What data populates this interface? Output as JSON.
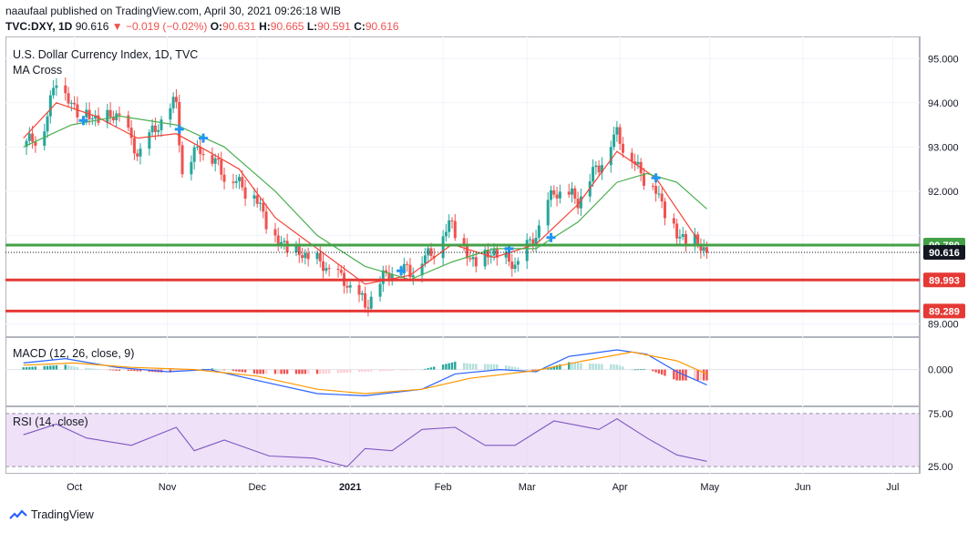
{
  "header": {
    "publisher": "naaufaal published on TradingView.com, April 30, 2021 09:26:18 WIB",
    "symbol": "TVC:DXY, 1D",
    "last": "90.616",
    "change": "−0.019 (−0.02%)",
    "open_label": "O:",
    "open": "90.631",
    "high_label": "H:",
    "high": "90.665",
    "low_label": "L:",
    "low": "90.591",
    "close_label": "C:",
    "close": "90.616"
  },
  "chart_title": "U.S. Dollar Currency Index, 1D, TVC",
  "indicator_ma": "MA Cross",
  "indicator_macd": "MACD (12, 26, close, 9)",
  "indicator_rsi": "RSI (14, close)",
  "footer_brand": "TradingView",
  "colors": {
    "up": "#26a69a",
    "down": "#ef5350",
    "ma_fast": "#f44336",
    "ma_slow": "#4caf50",
    "macd": "#2962ff",
    "signal": "#ff9800",
    "rsi": "#7e57c2",
    "rsi_band": "#e1c8f0",
    "level_red": "#e53935",
    "level_green": "#43a047",
    "cross_marker": "#2196f3"
  },
  "chart_data": [
    {
      "type": "candlestick",
      "title": "U.S. Dollar Currency Index, 1D, TVC",
      "ylim": [
        88.7,
        95.5
      ],
      "yticks": [
        "95.000",
        "94.000",
        "93.000",
        "92.000",
        "89.000"
      ],
      "xticks": [
        "Oct",
        "Nov",
        "Dec",
        "2021",
        "Feb",
        "Mar",
        "Apr",
        "May",
        "Jun",
        "Jul"
      ],
      "levels": [
        {
          "value": 90.78,
          "label": "90.780",
          "color": "#43a047"
        },
        {
          "value": 89.993,
          "label": "89.993",
          "color": "#e53935"
        },
        {
          "value": 89.289,
          "label": "89.289",
          "color": "#e53935"
        }
      ],
      "last_price": {
        "value": 90.616,
        "label": "90.616"
      },
      "close_path": [
        [
          "2020-09-14",
          93.0
        ],
        [
          "2020-09-21",
          93.4
        ],
        [
          "2020-09-25",
          94.6
        ],
        [
          "2020-09-30",
          93.9
        ],
        [
          "2020-10-08",
          93.6
        ],
        [
          "2020-10-16",
          93.7
        ],
        [
          "2020-10-22",
          92.8
        ],
        [
          "2020-10-28",
          93.4
        ],
        [
          "2020-11-04",
          94.0
        ],
        [
          "2020-11-06",
          92.4
        ],
        [
          "2020-11-12",
          93.0
        ],
        [
          "2020-11-20",
          92.4
        ],
        [
          "2020-11-30",
          91.9
        ],
        [
          "2020-12-07",
          90.9
        ],
        [
          "2020-12-14",
          90.6
        ],
        [
          "2020-12-21",
          90.4
        ],
        [
          "2020-12-31",
          89.9
        ],
        [
          "2021-01-06",
          89.4
        ],
        [
          "2021-01-14",
          90.2
        ],
        [
          "2021-01-21",
          90.2
        ],
        [
          "2021-01-28",
          90.6
        ],
        [
          "2021-02-04",
          91.3
        ],
        [
          "2021-02-10",
          90.4
        ],
        [
          "2021-02-18",
          90.6
        ],
        [
          "2021-02-25",
          90.3
        ],
        [
          "2021-03-04",
          91.0
        ],
        [
          "2021-03-10",
          92.0
        ],
        [
          "2021-03-18",
          91.8
        ],
        [
          "2021-03-25",
          92.6
        ],
        [
          "2021-03-31",
          93.3
        ],
        [
          "2021-04-06",
          92.6
        ],
        [
          "2021-04-13",
          92.0
        ],
        [
          "2021-04-20",
          91.0
        ],
        [
          "2021-04-27",
          90.8
        ],
        [
          "2021-04-30",
          90.616
        ]
      ],
      "series": [
        {
          "name": "MA fast",
          "color": "#f44336",
          "points": [
            [
              "2020-09-14",
              93.2
            ],
            [
              "2020-09-25",
              94.0
            ],
            [
              "2020-10-08",
              93.7
            ],
            [
              "2020-10-22",
              93.2
            ],
            [
              "2020-11-04",
              93.3
            ],
            [
              "2020-11-12",
              93.0
            ],
            [
              "2020-11-25",
              92.5
            ],
            [
              "2020-12-07",
              91.4
            ],
            [
              "2020-12-21",
              90.7
            ],
            [
              "2021-01-06",
              89.9
            ],
            [
              "2021-01-21",
              90.1
            ],
            [
              "2021-02-04",
              90.8
            ],
            [
              "2021-02-18",
              90.5
            ],
            [
              "2021-03-04",
              90.8
            ],
            [
              "2021-03-18",
              91.7
            ],
            [
              "2021-03-31",
              92.9
            ],
            [
              "2021-04-13",
              92.3
            ],
            [
              "2021-04-27",
              90.9
            ]
          ]
        },
        {
          "name": "MA slow",
          "color": "#4caf50",
          "points": [
            [
              "2020-09-14",
              93.0
            ],
            [
              "2020-09-30",
              93.5
            ],
            [
              "2020-10-16",
              93.7
            ],
            [
              "2020-11-04",
              93.5
            ],
            [
              "2020-11-20",
              93.0
            ],
            [
              "2020-12-07",
              92.0
            ],
            [
              "2020-12-21",
              91.0
            ],
            [
              "2021-01-06",
              90.3
            ],
            [
              "2021-01-21",
              90.0
            ],
            [
              "2021-02-04",
              90.4
            ],
            [
              "2021-02-18",
              90.7
            ],
            [
              "2021-03-04",
              90.7
            ],
            [
              "2021-03-18",
              91.3
            ],
            [
              "2021-03-31",
              92.2
            ],
            [
              "2021-04-10",
              92.4
            ],
            [
              "2021-04-20",
              92.2
            ],
            [
              "2021-04-30",
              91.6
            ]
          ]
        }
      ],
      "cross_markers": [
        [
          "2020-10-04",
          93.6
        ],
        [
          "2020-11-05",
          93.4
        ],
        [
          "2020-11-13",
          93.2
        ],
        [
          "2021-01-18",
          90.2
        ],
        [
          "2021-02-23",
          90.7
        ],
        [
          "2021-03-09",
          90.95
        ],
        [
          "2021-04-13",
          92.3
        ]
      ]
    },
    {
      "type": "line",
      "title": "MACD (12, 26, close, 9)",
      "ylim": [
        -0.8,
        0.7
      ],
      "yticks": [
        "0.000"
      ],
      "series": [
        {
          "name": "MACD",
          "color": "#2962ff",
          "points": [
            [
              "2020-09-14",
              0.15
            ],
            [
              "2020-09-28",
              0.25
            ],
            [
              "2020-10-15",
              0.05
            ],
            [
              "2020-11-01",
              -0.05
            ],
            [
              "2020-11-15",
              0.0
            ],
            [
              "2020-12-01",
              -0.25
            ],
            [
              "2020-12-21",
              -0.55
            ],
            [
              "2021-01-06",
              -0.6
            ],
            [
              "2021-01-25",
              -0.45
            ],
            [
              "2021-02-05",
              -0.1
            ],
            [
              "2021-02-20",
              0.0
            ],
            [
              "2021-03-04",
              -0.05
            ],
            [
              "2021-03-15",
              0.3
            ],
            [
              "2021-03-31",
              0.45
            ],
            [
              "2021-04-10",
              0.35
            ],
            [
              "2021-04-20",
              -0.05
            ],
            [
              "2021-04-30",
              -0.35
            ]
          ]
        },
        {
          "name": "Signal",
          "color": "#ff9800",
          "points": [
            [
              "2020-09-14",
              0.1
            ],
            [
              "2020-10-01",
              0.15
            ],
            [
              "2020-10-20",
              0.05
            ],
            [
              "2020-11-10",
              0.0
            ],
            [
              "2020-12-01",
              -0.15
            ],
            [
              "2020-12-21",
              -0.45
            ],
            [
              "2021-01-06",
              -0.55
            ],
            [
              "2021-01-25",
              -0.45
            ],
            [
              "2021-02-10",
              -0.2
            ],
            [
              "2021-03-04",
              -0.02
            ],
            [
              "2021-03-20",
              0.2
            ],
            [
              "2021-04-05",
              0.4
            ],
            [
              "2021-04-20",
              0.2
            ],
            [
              "2021-04-30",
              -0.1
            ]
          ]
        }
      ]
    },
    {
      "type": "line",
      "title": "RSI (14, close)",
      "ylim": [
        20,
        80
      ],
      "yticks": [
        "75.00",
        "25.00"
      ],
      "series": [
        {
          "name": "RSI",
          "color": "#7e57c2",
          "points": [
            [
              "2020-09-14",
              55
            ],
            [
              "2020-09-25",
              65
            ],
            [
              "2020-10-05",
              52
            ],
            [
              "2020-10-20",
              45
            ],
            [
              "2020-11-04",
              62
            ],
            [
              "2020-11-10",
              40
            ],
            [
              "2020-11-20",
              50
            ],
            [
              "2020-12-05",
              35
            ],
            [
              "2020-12-20",
              33
            ],
            [
              "2020-12-31",
              25
            ],
            [
              "2021-01-06",
              42
            ],
            [
              "2021-01-15",
              40
            ],
            [
              "2021-01-25",
              60
            ],
            [
              "2021-02-05",
              62
            ],
            [
              "2021-02-15",
              45
            ],
            [
              "2021-02-25",
              45
            ],
            [
              "2021-03-10",
              68
            ],
            [
              "2021-03-25",
              60
            ],
            [
              "2021-03-31",
              70
            ],
            [
              "2021-04-10",
              52
            ],
            [
              "2021-04-20",
              36
            ],
            [
              "2021-04-30",
              30
            ]
          ]
        }
      ]
    }
  ]
}
